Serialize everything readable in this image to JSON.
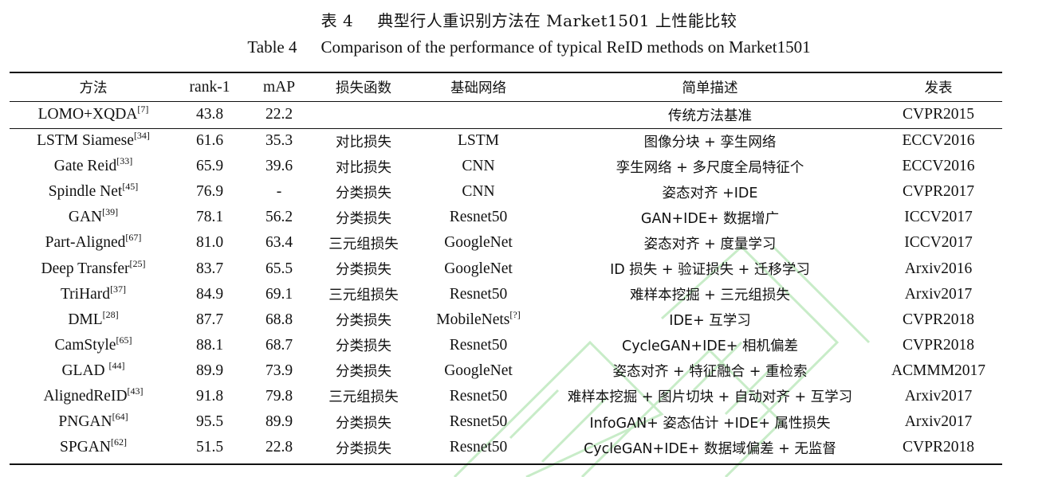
{
  "caption": {
    "cn_label": "表 4",
    "cn_title": "典型行人重识别方法在 Market1501 上性能比较",
    "en_label": "Table 4",
    "en_title": "Comparison of the performance of typical ReID methods on Market1501"
  },
  "table": {
    "headers": [
      "方法",
      "rank-1",
      "mAP",
      "损失函数",
      "基础网络",
      "简单描述",
      "发表"
    ],
    "baseline": {
      "method": "LOMO+XQDA",
      "ref": "[7]",
      "rank1": "43.8",
      "map": "22.2",
      "loss": "",
      "net": "",
      "desc": "传统方法基准",
      "pub": "CVPR2015"
    },
    "rows": [
      {
        "method": "LSTM Siamese",
        "ref": "[34]",
        "rank1": "61.6",
        "map": "35.3",
        "loss": "对比损失",
        "net": "LSTM",
        "net_ref": "",
        "desc": "图像分块 + 孪生网络",
        "pub": "ECCV2016"
      },
      {
        "method": "Gate Reid",
        "ref": "[33]",
        "rank1": "65.9",
        "map": "39.6",
        "loss": "对比损失",
        "net": "CNN",
        "net_ref": "",
        "desc": "孪生网络 + 多尺度全局特征个",
        "pub": "ECCV2016"
      },
      {
        "method": "Spindle Net",
        "ref": "[45]",
        "rank1": "76.9",
        "map": "-",
        "loss": "分类损失",
        "net": "CNN",
        "net_ref": "",
        "desc": "姿态对齐 +IDE",
        "pub": "CVPR2017"
      },
      {
        "method": "GAN",
        "ref": "[39]",
        "rank1": "78.1",
        "map": "56.2",
        "loss": "分类损失",
        "net": "Resnet50",
        "net_ref": "",
        "desc": "GAN+IDE+ 数据增广",
        "pub": "ICCV2017"
      },
      {
        "method": "Part-Aligned",
        "ref": "[67]",
        "rank1": "81.0",
        "map": "63.4",
        "loss": "三元组损失",
        "net": "GoogleNet",
        "net_ref": "",
        "desc": "姿态对齐 + 度量学习",
        "pub": "ICCV2017"
      },
      {
        "method": "Deep Transfer",
        "ref": "[25]",
        "rank1": "83.7",
        "map": "65.5",
        "loss": "分类损失",
        "net": "GoogleNet",
        "net_ref": "",
        "desc": "ID 损失 + 验证损失 + 迁移学习",
        "pub": "Arxiv2016"
      },
      {
        "method": "TriHard",
        "ref": "[37]",
        "rank1": "84.9",
        "map": "69.1",
        "loss": "三元组损失",
        "net": "Resnet50",
        "net_ref": "",
        "desc": "难样本挖掘 + 三元组损失",
        "pub": "Arxiv2017"
      },
      {
        "method": "DML",
        "ref": "[28]",
        "rank1": "87.7",
        "map": "68.8",
        "loss": "分类损失",
        "net": "MobileNets",
        "net_ref": "[?]",
        "desc": "IDE+ 互学习",
        "pub": "CVPR2018"
      },
      {
        "method": "CamStyle",
        "ref": "[65]",
        "rank1": "88.1",
        "map": "68.7",
        "loss": "分类损失",
        "net": "Resnet50",
        "net_ref": "",
        "desc": "CycleGAN+IDE+ 相机偏差",
        "pub": "CVPR2018"
      },
      {
        "method": "GLAD ",
        "ref": "[44]",
        "rank1": "89.9",
        "map": "73.9",
        "loss": "分类损失",
        "net": "GoogleNet",
        "net_ref": "",
        "desc": "姿态对齐 + 特征融合 + 重检索",
        "pub": "ACMMM2017"
      },
      {
        "method": "AlignedReID",
        "ref": "[43]",
        "rank1": "91.8",
        "map": "79.8",
        "loss": "三元组损失",
        "net": "Resnet50",
        "net_ref": "",
        "desc": "难样本挖掘 + 图片切块 + 自动对齐 + 互学习",
        "pub": "Arxiv2017"
      },
      {
        "method": "PNGAN",
        "ref": "[64]",
        "rank1": "95.5",
        "map": "89.9",
        "loss": "分类损失",
        "net": "Resnet50",
        "net_ref": "",
        "desc": "InfoGAN+ 姿态估计 +IDE+ 属性损失",
        "pub": "Arxiv2017"
      },
      {
        "method": "SPGAN",
        "ref": "[62]",
        "rank1": "51.5",
        "map": "22.8",
        "loss": "分类损失",
        "net": "Resnet50",
        "net_ref": "",
        "desc": "CycleGAN+IDE+ 数据域偏差 + 无监督",
        "pub": "CVPR2018"
      }
    ]
  },
  "colors": {
    "text": "#111111",
    "rule": "#111111",
    "watermark": "#c8ecc8"
  }
}
